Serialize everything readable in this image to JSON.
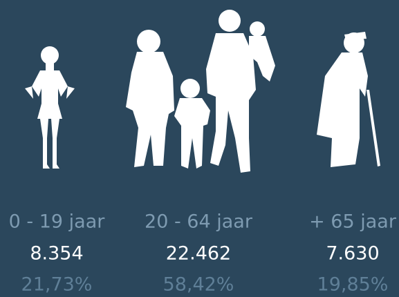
{
  "groups": [
    {
      "label": "0 - 19 jaar",
      "count": "8.354",
      "percent": "21,73%"
    },
    {
      "label": "20 - 64 jaar",
      "count": "22.462",
      "percent": "58,42%"
    },
    {
      "label": "+ 65 jaar",
      "count": "7.630",
      "percent": "19,85%"
    }
  ]
}
